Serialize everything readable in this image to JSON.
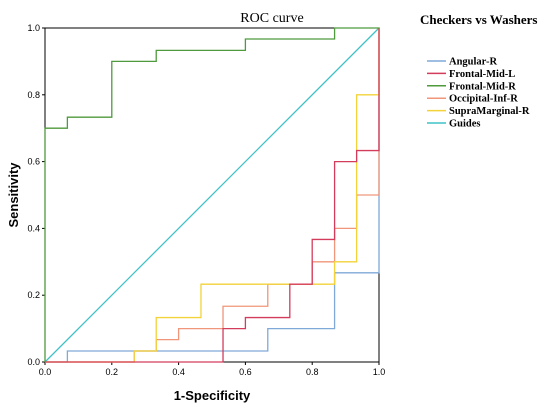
{
  "chart_data": {
    "type": "line",
    "title": "ROC  curve",
    "xlabel": "1-Specificity",
    "ylabel": "Sensitivity",
    "xlim": [
      0,
      1
    ],
    "ylim": [
      0,
      1
    ],
    "x_ticks": [
      "0.0",
      "0.2",
      "0.4",
      "0.6",
      "0.8",
      "1.0"
    ],
    "y_ticks": [
      "0.0",
      "0.2",
      "0.4",
      "0.6",
      "0.8",
      "1.0"
    ],
    "grid": false,
    "legend": {
      "title": "Checkers vs Washers",
      "placement": "right"
    },
    "series": [
      {
        "name": "Angular-R",
        "color": "#7fa9d8",
        "x": [
          0,
          0.067,
          0.067,
          0.667,
          0.667,
          0.867,
          0.867,
          1.0,
          1.0
        ],
        "y": [
          0,
          0,
          0.033,
          0.033,
          0.1,
          0.1,
          0.267,
          0.267,
          1.0
        ]
      },
      {
        "name": "Frontal-Mid-L",
        "color": "#d43c5c",
        "x": [
          0,
          0.533,
          0.533,
          0.6,
          0.6,
          0.667,
          0.667,
          0.733,
          0.733,
          0.8,
          0.8,
          0.867,
          0.867,
          0.933,
          0.933,
          1.0,
          1.0
        ],
        "y": [
          0,
          0,
          0.1,
          0.1,
          0.133,
          0.133,
          0.133,
          0.133,
          0.233,
          0.233,
          0.367,
          0.367,
          0.6,
          0.6,
          0.633,
          0.633,
          1.0
        ]
      },
      {
        "name": "Frontal-Mid-R",
        "color": "#4e9a3c",
        "x": [
          0,
          0,
          0.067,
          0.067,
          0.2,
          0.2,
          0.333,
          0.333,
          0.6,
          0.6,
          0.867,
          0.867,
          1.0
        ],
        "y": [
          0,
          0.7,
          0.7,
          0.733,
          0.733,
          0.9,
          0.9,
          0.933,
          0.933,
          0.967,
          0.967,
          1.0,
          1.0
        ]
      },
      {
        "name": "Occipital-Inf-R",
        "color": "#f0967a",
        "x": [
          0,
          0.267,
          0.267,
          0.333,
          0.333,
          0.4,
          0.4,
          0.533,
          0.533,
          0.667,
          0.667,
          0.8,
          0.8,
          0.867,
          0.867,
          0.933,
          0.933,
          1.0,
          1.0
        ],
        "y": [
          0,
          0,
          0.033,
          0.033,
          0.067,
          0.067,
          0.1,
          0.1,
          0.167,
          0.167,
          0.233,
          0.233,
          0.3,
          0.3,
          0.4,
          0.4,
          0.5,
          0.5,
          1.0
        ]
      },
      {
        "name": "SupraMarginal-R",
        "color": "#f2d33a",
        "x": [
          0,
          0.267,
          0.267,
          0.333,
          0.333,
          0.467,
          0.467,
          0.867,
          0.867,
          0.933,
          0.933,
          1.0,
          1.0
        ],
        "y": [
          0,
          0,
          0.033,
          0.033,
          0.133,
          0.133,
          0.233,
          0.233,
          0.3,
          0.3,
          0.8,
          0.8,
          1.0
        ]
      },
      {
        "name": "Guides",
        "color": "#3fc2c6",
        "x": [
          0,
          1
        ],
        "y": [
          0,
          1
        ]
      }
    ]
  }
}
